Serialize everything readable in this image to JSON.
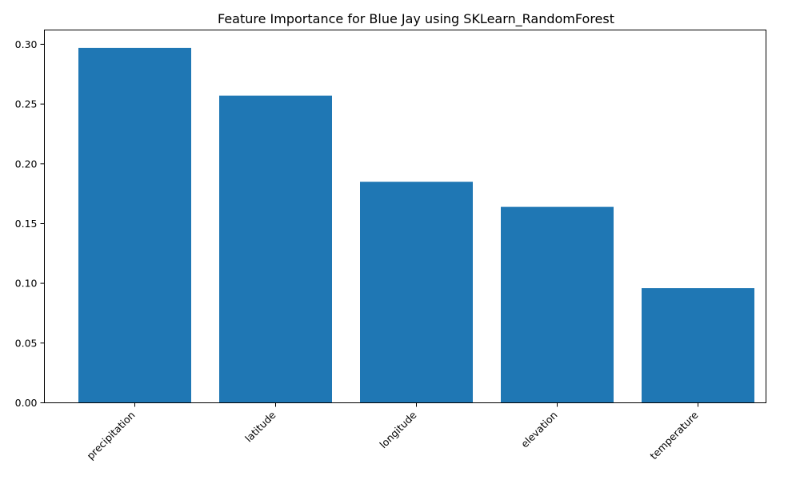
{
  "chart_data": {
    "type": "bar",
    "title": "Feature Importance for Blue Jay using SKLearn_RandomForest",
    "xlabel": "",
    "ylabel": "",
    "categories": [
      "precipitation",
      "latitude",
      "longitude",
      "elevation",
      "temperature"
    ],
    "values": [
      0.297,
      0.257,
      0.185,
      0.164,
      0.096
    ],
    "ylim": [
      0,
      0.312
    ],
    "yticks": [
      0.0,
      0.05,
      0.1,
      0.15,
      0.2,
      0.25,
      0.3
    ],
    "ytick_labels": [
      "0.00",
      "0.05",
      "0.10",
      "0.15",
      "0.20",
      "0.25",
      "0.30"
    ],
    "bar_color": "#1f77b4",
    "grid": false,
    "legend": "none"
  }
}
